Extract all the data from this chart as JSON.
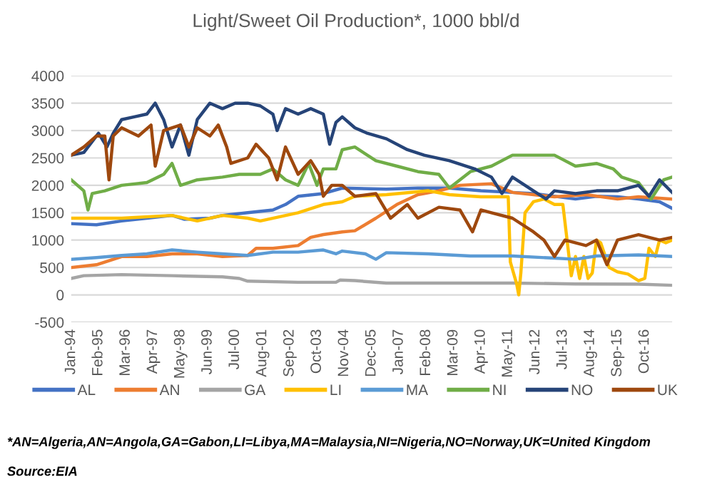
{
  "chart_data": {
    "type": "line",
    "title": "Light/Sweet Oil Production*, 1000 bbl/d",
    "ylim": [
      -500,
      4000
    ],
    "yticks": [
      -500,
      0,
      500,
      1000,
      1500,
      2000,
      2500,
      3000,
      3500,
      4000
    ],
    "xlim": [
      "1994-01",
      "2017-11"
    ],
    "xticks": [
      {
        "value": "1994-01",
        "label": "Jan-94"
      },
      {
        "value": "1995-02",
        "label": "Feb-95"
      },
      {
        "value": "1996-03",
        "label": "Mar-96"
      },
      {
        "value": "1997-04",
        "label": "Apr-97"
      },
      {
        "value": "1998-05",
        "label": "May-98"
      },
      {
        "value": "1999-06",
        "label": "Jun-99"
      },
      {
        "value": "2000-07",
        "label": "Jul-00"
      },
      {
        "value": "2001-08",
        "label": "Aug-01"
      },
      {
        "value": "2002-09",
        "label": "Sep-02"
      },
      {
        "value": "2003-10",
        "label": "Oct-03"
      },
      {
        "value": "2004-11",
        "label": "Nov-04"
      },
      {
        "value": "2005-12",
        "label": "Dec-05"
      },
      {
        "value": "2007-01",
        "label": "Jan-07"
      },
      {
        "value": "2008-02",
        "label": "Feb-08"
      },
      {
        "value": "2009-03",
        "label": "Mar-09"
      },
      {
        "value": "2010-04",
        "label": "Apr-10"
      },
      {
        "value": "2011-05",
        "label": "May-11"
      },
      {
        "value": "2012-06",
        "label": "Jun-12"
      },
      {
        "value": "2013-07",
        "label": "Jul-13"
      },
      {
        "value": "2014-08",
        "label": "Aug-14"
      },
      {
        "value": "2015-09",
        "label": "Sep-15"
      },
      {
        "value": "2016-10",
        "label": "Oct-16"
      }
    ],
    "grid": "y",
    "legend": "bottom",
    "annotations": [
      "*AN=Algeria,AN=Angola,GA=Gabon,LI=Libya,MA=Malaysia,NI=Nigeria,NO=Norway,UK=United Kingdom",
      "Source:EIA"
    ],
    "series": [
      {
        "name": "AL",
        "color": "#4472c4",
        "x": [
          "1994-01",
          "1995-01",
          "1996-01",
          "1997-01",
          "1998-01",
          "1998-07",
          "1999-07",
          "2000-01",
          "2001-01",
          "2002-01",
          "2002-07",
          "2003-01",
          "2004-01",
          "2004-10",
          "2006-07",
          "2007-10",
          "2009-01",
          "2010-04",
          "2011-07",
          "2012-05",
          "2014-01",
          "2014-11",
          "2015-09",
          "2016-07",
          "2017-05",
          "2017-11"
        ],
        "values": [
          1300,
          1280,
          1350,
          1400,
          1450,
          1380,
          1400,
          1450,
          1500,
          1550,
          1650,
          1800,
          1850,
          1950,
          1930,
          1950,
          1950,
          1900,
          1870,
          1850,
          1750,
          1800,
          1790,
          1750,
          1700,
          1580
        ]
      },
      {
        "name": "AN",
        "color": "#ed7d31",
        "x": [
          "1994-01",
          "1995-01",
          "1996-01",
          "1997-01",
          "1998-01",
          "1999-01",
          "2000-01",
          "2001-01",
          "2001-05",
          "2002-01",
          "2003-01",
          "2003-07",
          "2004-01",
          "2004-10",
          "2005-04",
          "2006-02",
          "2006-12",
          "2007-10",
          "2008-08",
          "2009-06",
          "2010-09",
          "2011-07",
          "2012-05",
          "2013-03",
          "2014-06",
          "2015-09",
          "2016-07",
          "2017-11"
        ],
        "values": [
          500,
          550,
          700,
          700,
          750,
          750,
          700,
          720,
          850,
          850,
          900,
          1050,
          1100,
          1150,
          1170,
          1400,
          1650,
          1830,
          1900,
          2000,
          2030,
          1870,
          1830,
          1790,
          1830,
          1750,
          1790,
          1750
        ]
      },
      {
        "name": "GA",
        "color": "#a5a5a5",
        "x": [
          "1994-01",
          "1994-07",
          "1996-01",
          "1998-01",
          "2000-01",
          "2000-09",
          "2001-01",
          "2003-01",
          "2004-07",
          "2004-09",
          "2005-04",
          "2006-07",
          "2009-01",
          "2011-07",
          "2014-01",
          "2016-07",
          "2017-11"
        ],
        "values": [
          300,
          350,
          370,
          350,
          330,
          300,
          250,
          230,
          230,
          270,
          260,
          215,
          215,
          215,
          200,
          195,
          175
        ]
      },
      {
        "name": "LI",
        "color": "#ffc000",
        "x": [
          "1994-01",
          "1996-01",
          "1998-01",
          "1999-01",
          "2000-01",
          "2001-01",
          "2001-07",
          "2003-01",
          "2004-01",
          "2004-10",
          "2005-04",
          "2006-07",
          "2008-03",
          "2009-01",
          "2010-04",
          "2011-05",
          "2011-06",
          "2011-09",
          "2011-10",
          "2011-11",
          "2012-01",
          "2012-05",
          "2012-10",
          "2013-03",
          "2013-07",
          "2013-09",
          "2013-11",
          "2014-01",
          "2014-03",
          "2014-05",
          "2014-07",
          "2014-09",
          "2014-11",
          "2015-01",
          "2015-05",
          "2015-09",
          "2016-02",
          "2016-07",
          "2016-10",
          "2016-12",
          "2017-03",
          "2017-05",
          "2017-08",
          "2017-11"
        ],
        "values": [
          1400,
          1400,
          1450,
          1350,
          1450,
          1400,
          1350,
          1500,
          1650,
          1700,
          1800,
          1830,
          1900,
          1830,
          1790,
          1790,
          600,
          200,
          0,
          400,
          1500,
          1700,
          1750,
          1650,
          1650,
          1000,
          350,
          700,
          300,
          700,
          300,
          400,
          1000,
          950,
          500,
          420,
          380,
          260,
          300,
          850,
          700,
          1000,
          950,
          1000
        ]
      },
      {
        "name": "MA",
        "color": "#5b9bd5",
        "x": [
          "1994-01",
          "1995-01",
          "1996-01",
          "1997-01",
          "1998-01",
          "1999-01",
          "2000-01",
          "2001-01",
          "2002-01",
          "2003-01",
          "2004-01",
          "2004-07",
          "2004-10",
          "2005-09",
          "2006-02",
          "2006-07",
          "2008-03",
          "2009-11",
          "2011-07",
          "2013-03",
          "2014-01",
          "2014-11",
          "2015-09",
          "2016-07",
          "2017-11"
        ],
        "values": [
          650,
          680,
          720,
          750,
          820,
          780,
          750,
          720,
          780,
          780,
          820,
          750,
          800,
          750,
          650,
          770,
          750,
          710,
          710,
          670,
          650,
          710,
          720,
          730,
          700
        ]
      },
      {
        "name": "NI",
        "color": "#70ad47",
        "x": [
          "1994-01",
          "1994-07",
          "1994-09",
          "1994-11",
          "1995-05",
          "1996-01",
          "1997-01",
          "1997-09",
          "1998-01",
          "1998-05",
          "1999-01",
          "2000-01",
          "2000-09",
          "2001-07",
          "2002-01",
          "2002-07",
          "2003-01",
          "2003-06",
          "2003-10",
          "2004-01",
          "2004-07",
          "2004-10",
          "2005-04",
          "2006-02",
          "2006-12",
          "2007-10",
          "2008-08",
          "2009-01",
          "2009-11",
          "2010-09",
          "2011-07",
          "2012-05",
          "2013-03",
          "2014-01",
          "2014-11",
          "2015-07",
          "2015-11",
          "2016-07",
          "2017-01",
          "2017-07",
          "2017-11"
        ],
        "values": [
          2100,
          1900,
          1550,
          1850,
          1900,
          2000,
          2050,
          2200,
          2400,
          2000,
          2100,
          2150,
          2200,
          2200,
          2300,
          2100,
          2000,
          2400,
          2000,
          2300,
          2300,
          2650,
          2700,
          2450,
          2350,
          2250,
          2200,
          1950,
          2250,
          2350,
          2550,
          2550,
          2550,
          2350,
          2400,
          2300,
          2150,
          2050,
          1750,
          2100,
          2150
        ]
      },
      {
        "name": "NO",
        "color": "#264478",
        "x": [
          "1994-01",
          "1994-07",
          "1995-02",
          "1995-06",
          "1995-09",
          "1996-01",
          "1996-07",
          "1997-01",
          "1997-05",
          "1997-09",
          "1998-01",
          "1998-05",
          "1998-09",
          "1999-01",
          "1999-07",
          "2000-01",
          "2000-07",
          "2001-01",
          "2001-07",
          "2002-01",
          "2002-03",
          "2002-07",
          "2003-01",
          "2003-07",
          "2004-01",
          "2004-04",
          "2004-07",
          "2004-10",
          "2005-04",
          "2005-10",
          "2006-07",
          "2007-05",
          "2008-01",
          "2009-01",
          "2010-01",
          "2010-09",
          "2011-02",
          "2011-07",
          "2012-05",
          "2012-11",
          "2013-03",
          "2014-01",
          "2014-11",
          "2015-09",
          "2016-07",
          "2016-12",
          "2017-05",
          "2017-11"
        ],
        "values": [
          2550,
          2600,
          2950,
          2700,
          2950,
          3200,
          3250,
          3300,
          3500,
          3200,
          2700,
          3100,
          2550,
          3200,
          3500,
          3400,
          3500,
          3500,
          3450,
          3300,
          3000,
          3400,
          3300,
          3400,
          3300,
          2750,
          3150,
          3250,
          3050,
          2950,
          2850,
          2650,
          2550,
          2450,
          2300,
          2150,
          1850,
          2150,
          1900,
          1750,
          1900,
          1850,
          1900,
          1900,
          2000,
          1800,
          2100,
          1870
        ]
      },
      {
        "name": "UK",
        "color": "#9e480e",
        "x": [
          "1994-01",
          "1994-07",
          "1995-01",
          "1995-05",
          "1995-07",
          "1995-09",
          "1996-01",
          "1996-09",
          "1997-03",
          "1997-05",
          "1997-09",
          "1998-05",
          "1998-09",
          "1999-01",
          "1999-07",
          "1999-11",
          "2000-03",
          "2000-05",
          "2001-01",
          "2001-05",
          "2001-11",
          "2002-03",
          "2002-07",
          "2003-01",
          "2003-07",
          "2003-11",
          "2004-01",
          "2004-05",
          "2004-10",
          "2005-04",
          "2006-02",
          "2006-09",
          "2007-05",
          "2007-10",
          "2008-08",
          "2009-06",
          "2009-12",
          "2010-04",
          "2010-09",
          "2011-07",
          "2012-05",
          "2012-10",
          "2013-03",
          "2013-08",
          "2014-06",
          "2014-11",
          "2015-04",
          "2015-09",
          "2016-07",
          "2017-05",
          "2017-11"
        ],
        "values": [
          2550,
          2700,
          2900,
          2900,
          2100,
          2900,
          3050,
          2900,
          3100,
          2350,
          3000,
          3100,
          2700,
          3050,
          2900,
          3100,
          2700,
          2400,
          2500,
          2750,
          2500,
          2100,
          2700,
          2200,
          2450,
          2200,
          1800,
          2000,
          2000,
          1800,
          1850,
          1400,
          1650,
          1400,
          1600,
          1550,
          1150,
          1550,
          1500,
          1400,
          1150,
          1000,
          700,
          1000,
          900,
          1000,
          550,
          1000,
          1100,
          1000,
          1050
        ]
      }
    ]
  }
}
